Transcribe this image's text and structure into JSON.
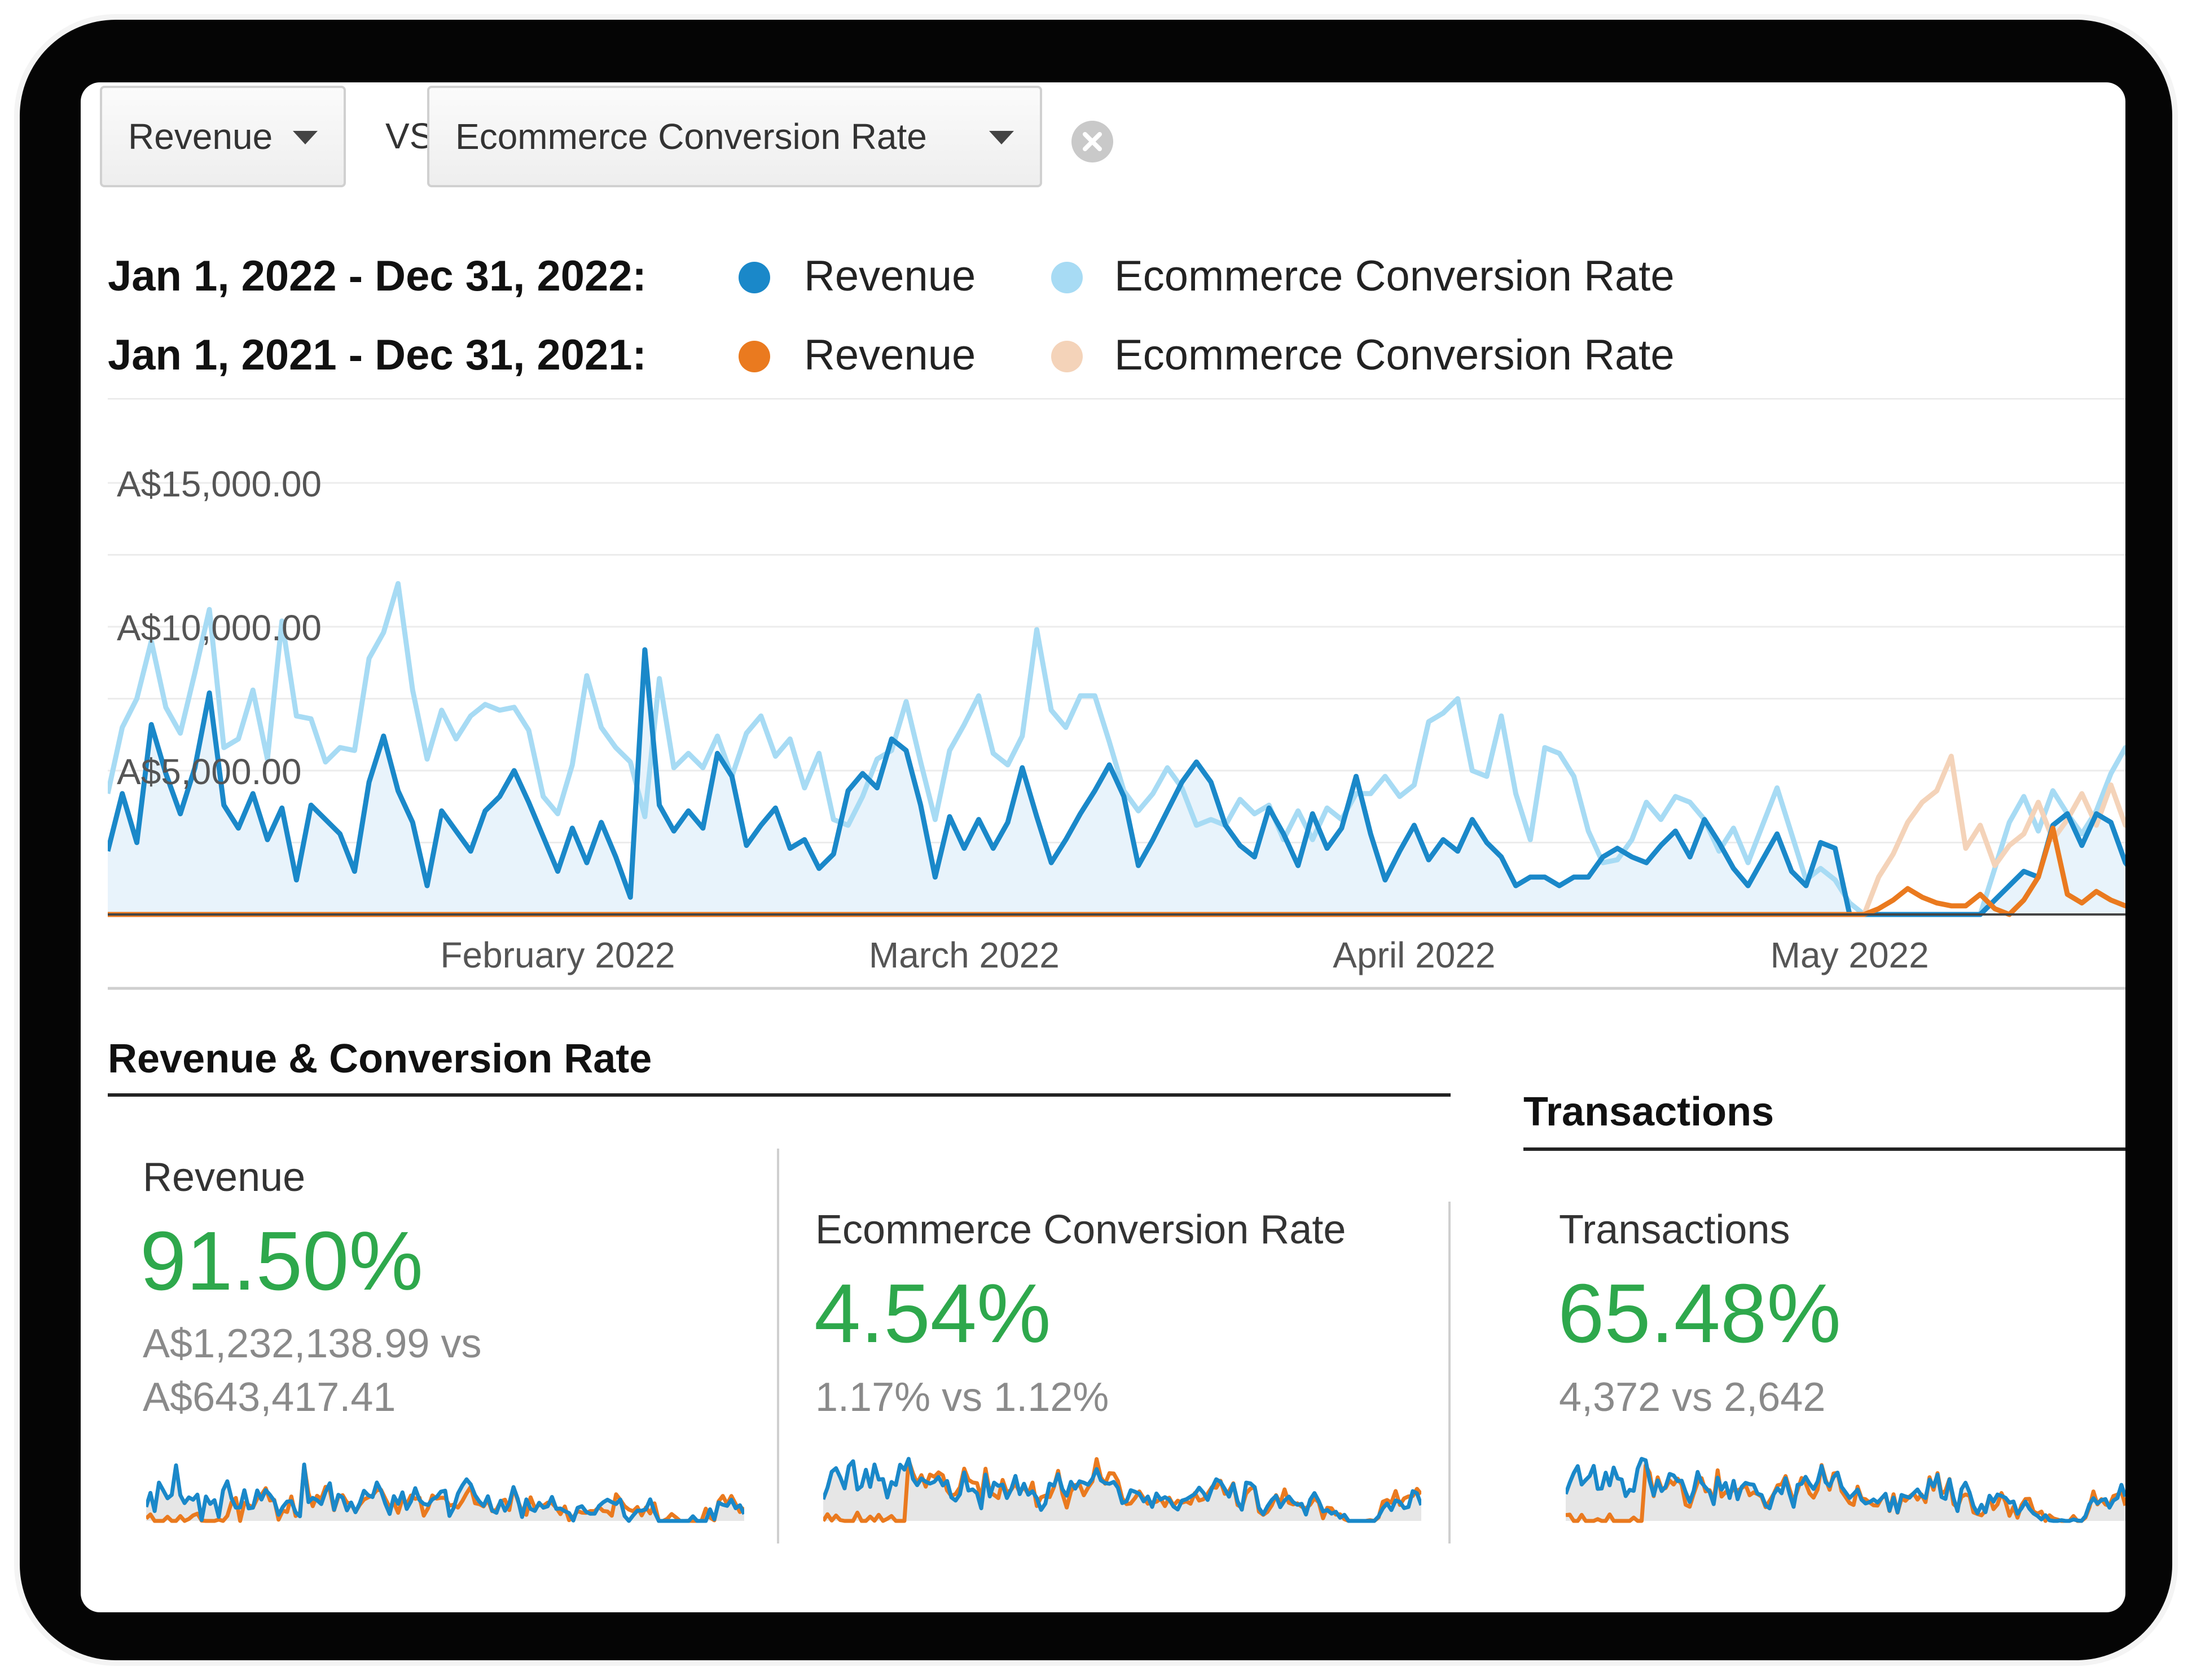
{
  "controls": {
    "primary_metric": "Revenue",
    "vs_label": "VS.",
    "secondary_metric": "Ecommerce Conversion Rate",
    "remove_icon": "close-circle-icon"
  },
  "legend": {
    "rows": [
      {
        "range": "Jan 1, 2022 - Dec 31, 2022:",
        "revenue_label": "Revenue",
        "revenue_color": "#1a88c9",
        "conversion_label": "Ecommerce Conversion Rate",
        "conversion_color": "#a7dbf4"
      },
      {
        "range": "Jan 1, 2021 - Dec 31, 2021:",
        "revenue_label": "Revenue",
        "revenue_color": "#ea7a1f",
        "conversion_label": "Ecommerce Conversion Rate",
        "conversion_color": "#f4d3b9"
      }
    ]
  },
  "chart_data": {
    "type": "line",
    "y_ticks": [
      "A$15,000.00",
      "A$10,000.00",
      "A$5,000.00"
    ],
    "y_tick_values": [
      15000,
      10000,
      5000
    ],
    "ylim": [
      0,
      15000
    ],
    "x_ticks": [
      "February 2022",
      "March 2022",
      "April 2022",
      "May 2022"
    ],
    "x_tick_days": [
      31,
      59,
      90,
      120
    ],
    "x_day_range": [
      0,
      139
    ],
    "grid": true,
    "series": [
      {
        "name": "Revenue",
        "period": "Jan 1, 2022 - Dec 31, 2022",
        "color": "#1a88c9",
        "area": true,
        "values": [
          2200,
          4200,
          2500,
          6600,
          4900,
          3500,
          5100,
          7700,
          3800,
          3000,
          4200,
          2600,
          3700,
          1200,
          3800,
          3300,
          2800,
          1500,
          4600,
          6200,
          4300,
          3200,
          1000,
          3600,
          2900,
          2200,
          3600,
          4100,
          5000,
          3900,
          2700,
          1500,
          3000,
          1800,
          3200,
          2000,
          600,
          9200,
          3800,
          2900,
          3600,
          3000,
          5600,
          4800,
          2400,
          3100,
          3700,
          2300,
          2600,
          1600,
          2100,
          4300,
          4900,
          4400,
          6100,
          5700,
          3800,
          1300,
          3400,
          2300,
          3300,
          2300,
          3200,
          5100,
          3400,
          1800,
          2600,
          3500,
          4300,
          5200,
          4100,
          1700,
          2600,
          3600,
          4600,
          5300,
          4600,
          3100,
          2400,
          2000,
          3700,
          2800,
          1700,
          3500,
          2300,
          3000,
          4800,
          2800,
          1200,
          2200,
          3100,
          1900,
          2600,
          2200,
          3300,
          2500,
          2000,
          1000,
          1300,
          1300,
          1000,
          1300,
          1300,
          2000,
          2300,
          2000,
          1800,
          2400,
          2900,
          2000,
          3300,
          2500,
          1600,
          1000,
          1900,
          2800,
          1500,
          1000,
          2500,
          2300,
          0,
          0,
          0,
          0,
          0,
          0,
          0,
          0,
          0,
          0,
          500,
          1000,
          1500,
          1300,
          3100,
          3500,
          2400,
          3500,
          3200,
          1800,
          1200
        ]
      },
      {
        "name": "Ecommerce Conversion Rate",
        "period": "Jan 1, 2022 - Dec 31, 2022",
        "color": "#a7dbf4",
        "values": [
          4200,
          6500,
          7500,
          9500,
          7200,
          6300,
          8400,
          10600,
          5800,
          6100,
          7800,
          5400,
          10200,
          6900,
          6800,
          5300,
          5800,
          5700,
          8900,
          9800,
          11500,
          7800,
          5400,
          7100,
          6100,
          6900,
          7300,
          7100,
          7200,
          6400,
          4100,
          3500,
          5200,
          8300,
          6500,
          5800,
          5300,
          3400,
          8200,
          5100,
          5600,
          5100,
          6200,
          4800,
          6300,
          6900,
          5500,
          6100,
          4400,
          5600,
          3300,
          3100,
          4100,
          5400,
          5700,
          7400,
          5300,
          3300,
          5700,
          6600,
          7600,
          5600,
          5200,
          6200,
          9900,
          7100,
          6500,
          7600,
          7600,
          6000,
          4300,
          3600,
          4200,
          5100,
          4400,
          3100,
          3300,
          3100,
          4000,
          3500,
          3800,
          2600,
          3600,
          2600,
          3700,
          3300,
          4200,
          4200,
          4800,
          4100,
          4500,
          6700,
          7000,
          7500,
          5000,
          4800,
          6900,
          4200,
          2600,
          5800,
          5600,
          4800,
          2900,
          1800,
          1900,
          2600,
          3900,
          3300,
          4100,
          3900,
          3300,
          2200,
          3000,
          1800,
          3100,
          4400,
          2800,
          1200,
          1600,
          1200,
          400,
          0,
          0,
          0,
          0,
          0,
          0,
          0,
          0,
          0,
          1600,
          3200,
          4100,
          2900,
          4300,
          3500,
          2800,
          3600,
          4900,
          5800,
          4000
        ]
      },
      {
        "name": "Revenue",
        "period": "Jan 1, 2021 - Dec 31, 2021",
        "color": "#ea7a1f",
        "values": [
          0,
          0,
          0,
          0,
          0,
          0,
          0,
          0,
          0,
          0,
          0,
          0,
          0,
          0,
          0,
          0,
          0,
          0,
          0,
          0,
          0,
          0,
          0,
          0,
          0,
          0,
          0,
          0,
          0,
          0,
          0,
          0,
          0,
          0,
          0,
          0,
          0,
          0,
          0,
          0,
          0,
          0,
          0,
          0,
          0,
          0,
          0,
          0,
          0,
          0,
          0,
          0,
          0,
          0,
          0,
          0,
          0,
          0,
          0,
          0,
          0,
          0,
          0,
          0,
          0,
          0,
          0,
          0,
          0,
          0,
          0,
          0,
          0,
          0,
          0,
          0,
          0,
          0,
          0,
          0,
          0,
          0,
          0,
          0,
          0,
          0,
          0,
          0,
          0,
          0,
          0,
          0,
          0,
          0,
          0,
          0,
          0,
          0,
          0,
          0,
          0,
          0,
          0,
          0,
          0,
          0,
          0,
          0,
          0,
          0,
          0,
          0,
          0,
          0,
          0,
          0,
          0,
          0,
          0,
          0,
          0,
          0,
          200,
          500,
          900,
          600,
          400,
          300,
          300,
          700,
          200,
          0,
          500,
          1300,
          3000,
          700,
          400,
          800,
          500,
          300,
          200
        ]
      },
      {
        "name": "Ecommerce Conversion Rate",
        "period": "Jan 1, 2021 - Dec 31, 2021",
        "color": "#f4d3b9",
        "values": [
          0,
          0,
          0,
          0,
          0,
          0,
          0,
          0,
          0,
          0,
          0,
          0,
          0,
          0,
          0,
          0,
          0,
          0,
          0,
          0,
          0,
          0,
          0,
          0,
          0,
          0,
          0,
          0,
          0,
          0,
          0,
          0,
          0,
          0,
          0,
          0,
          0,
          0,
          0,
          0,
          0,
          0,
          0,
          0,
          0,
          0,
          0,
          0,
          0,
          0,
          0,
          0,
          0,
          0,
          0,
          0,
          0,
          0,
          0,
          0,
          0,
          0,
          0,
          0,
          0,
          0,
          0,
          0,
          0,
          0,
          0,
          0,
          0,
          0,
          0,
          0,
          0,
          0,
          0,
          0,
          0,
          0,
          0,
          0,
          0,
          0,
          0,
          0,
          0,
          0,
          0,
          0,
          0,
          0,
          0,
          0,
          0,
          0,
          0,
          0,
          0,
          0,
          0,
          0,
          0,
          0,
          0,
          0,
          0,
          0,
          0,
          0,
          0,
          0,
          0,
          0,
          0,
          0,
          0,
          0,
          0,
          0,
          1300,
          2100,
          3200,
          3900,
          4300,
          5500,
          2300,
          3100,
          1700,
          2400,
          2800,
          3900,
          2600,
          3300,
          4200,
          3100,
          4500,
          3100,
          4100
        ]
      }
    ]
  },
  "sections": {
    "revenue_conversion_title": "Revenue & Conversion Rate",
    "transactions_title": "Transactions"
  },
  "tiles": [
    {
      "label": "Revenue",
      "change": "91.50%",
      "current": "A$1,232,138.99 vs",
      "previous": "A$643,417.41"
    },
    {
      "label": "Ecommerce Conversion Rate",
      "change": "4.54%",
      "comparison": "1.17% vs 1.12%"
    },
    {
      "label": "Transactions",
      "change": "65.48%",
      "comparison": "4,372 vs 2,642"
    }
  ]
}
